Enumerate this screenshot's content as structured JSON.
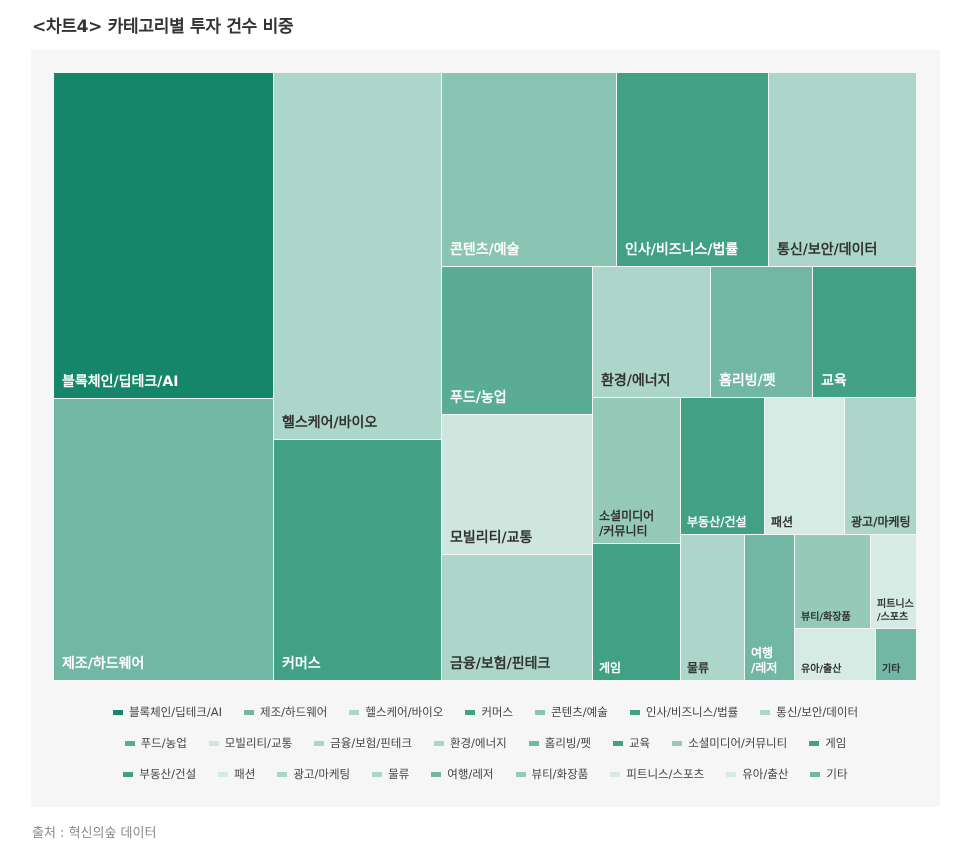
{
  "heading": "<차트4>  카테고리별 투자 건수 비중",
  "source": "출처 : 혁신의숲 데이터",
  "chart_data": {
    "type": "treemap",
    "title": "<차트4>  카테고리별 투자 건수 비중",
    "legend_position": "bottom",
    "categories": [
      {
        "name": "블록체인/딥테크/AI",
        "label": [
          "블록체인/딥테크/AI"
        ],
        "color": "#15866a",
        "text": "#ffffff"
      },
      {
        "name": "제조/하드웨어",
        "label": [
          "제조/하드웨어"
        ],
        "color": "#72b7a3",
        "text": "#ffffff"
      },
      {
        "name": "헬스케어/바이오",
        "label": [
          "헬스케어/바이오"
        ],
        "color": "#add6ca",
        "text": "#333333"
      },
      {
        "name": "커머스",
        "label": [
          "커머스"
        ],
        "color": "#42a085",
        "text": "#ffffff"
      },
      {
        "name": "콘텐츠/예술",
        "label": [
          "콘텐츠/예술"
        ],
        "color": "#8ac4b3",
        "text": "#ffffff"
      },
      {
        "name": "인사/비즈니스/법률",
        "label": [
          "인사/비즈니스/법률"
        ],
        "color": "#42a085",
        "text": "#ffffff"
      },
      {
        "name": "통신/보안/데이터",
        "label": [
          "통신/보안/데이터"
        ],
        "color": "#add6ca",
        "text": "#333333"
      },
      {
        "name": "푸드/농업",
        "label": [
          "푸드/농업"
        ],
        "color": "#5aac94",
        "text": "#ffffff"
      },
      {
        "name": "모빌리티/교통",
        "label": [
          "모빌리티/교통"
        ],
        "color": "#cfe6de",
        "text": "#333333"
      },
      {
        "name": "금융/보험/핀테크",
        "label": [
          "금융/보험/핀테크"
        ],
        "color": "#add6ca",
        "text": "#333333"
      },
      {
        "name": "환경/에너지",
        "label": [
          "환경/에너지"
        ],
        "color": "#add6ca",
        "text": "#333333"
      },
      {
        "name": "홈리빙/펫",
        "label": [
          "홈리빙/펫"
        ],
        "color": "#72b7a3",
        "text": "#ffffff"
      },
      {
        "name": "교육",
        "label": [
          "교육"
        ],
        "color": "#42a085",
        "text": "#ffffff"
      },
      {
        "name": "소셜미디어/커뮤니티",
        "label": [
          "소셜미디어",
          "/커뮤니티"
        ],
        "color": "#95cab9",
        "text": "#333333"
      },
      {
        "name": "게임",
        "label": [
          "게임"
        ],
        "color": "#42a085",
        "text": "#ffffff"
      },
      {
        "name": "부동산/건설",
        "label": [
          "부동산/건설"
        ],
        "color": "#42a085",
        "text": "#ffffff"
      },
      {
        "name": "패션",
        "label": [
          "패션"
        ],
        "color": "#d5ebe3",
        "text": "#333333"
      },
      {
        "name": "광고/마케팅",
        "label": [
          "광고/마케팅"
        ],
        "color": "#add6ca",
        "text": "#333333"
      },
      {
        "name": "물류",
        "label": [
          "물류"
        ],
        "color": "#add6ca",
        "text": "#333333"
      },
      {
        "name": "여행/레저",
        "label": [
          "여행",
          "/레저"
        ],
        "color": "#72b7a3",
        "text": "#ffffff"
      },
      {
        "name": "뷰티/화장품",
        "label": [
          "뷰티/화장품"
        ],
        "color": "#95cab9",
        "text": "#333333"
      },
      {
        "name": "피트니스/스포츠",
        "label": [
          "피트니스",
          "/스포츠"
        ],
        "color": "#d5ebe3",
        "text": "#333333"
      },
      {
        "name": "유아/출산",
        "label": [
          "유아/출산"
        ],
        "color": "#d5ebe3",
        "text": "#333333"
      },
      {
        "name": "기타",
        "label": [
          "기타"
        ],
        "color": "#72b7a3",
        "text": "#333333"
      }
    ],
    "legend_rows": [
      [
        "블록체인/딥테크/AI",
        "제조/하드웨어",
        "헬스케어/바이오",
        "커머스",
        "콘텐츠/예술",
        "인사/비즈니스/법률",
        "통신/보안/데이터"
      ],
      [
        "푸드/농업",
        "모빌리티/교통",
        "금융/보험/핀테크",
        "환경/에너지",
        "홈리빙/펫",
        "교육",
        "소셜미디어/커뮤니티",
        "게임"
      ],
      [
        "부동산/건설",
        "패션",
        "광고/마케팅",
        "물류",
        "여행/레저",
        "뷰티/화장품",
        "피트니스/스포츠",
        "유아/출산",
        "기타"
      ]
    ]
  }
}
